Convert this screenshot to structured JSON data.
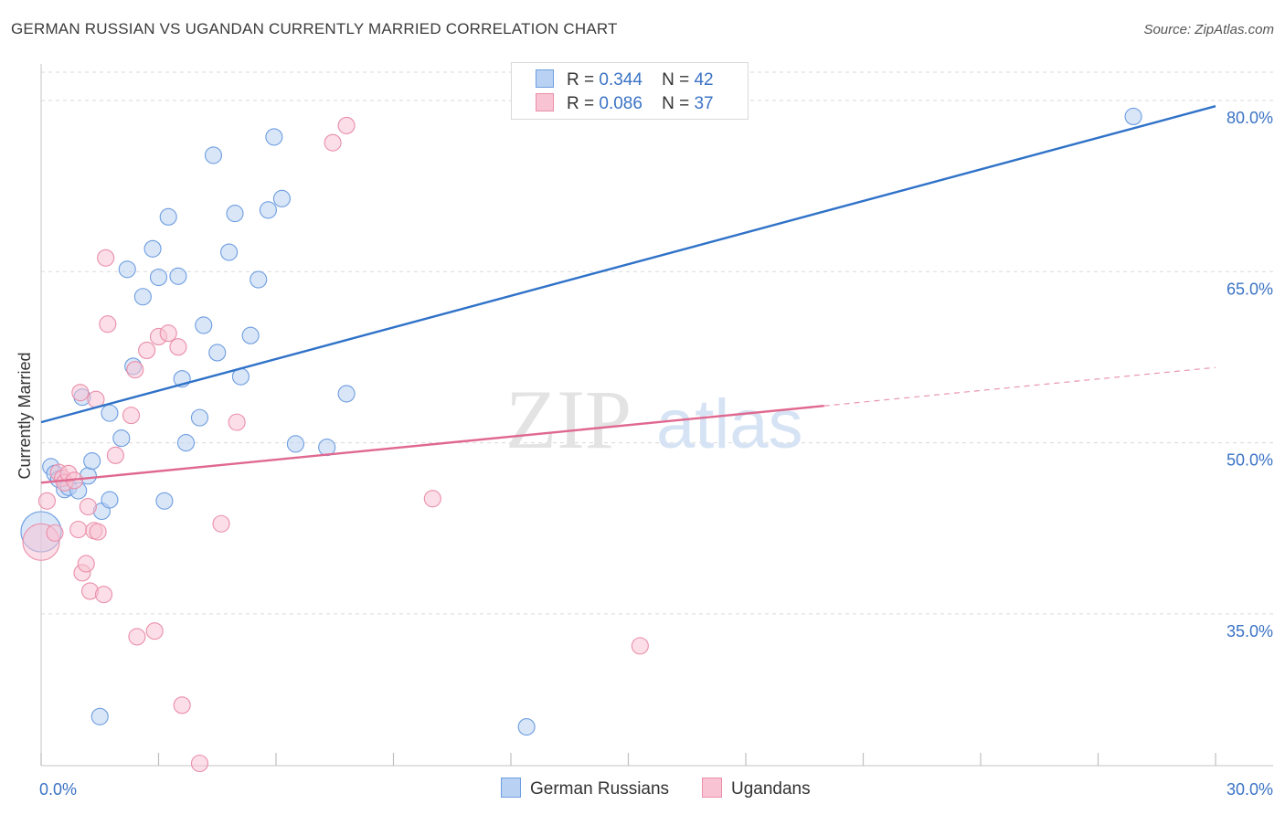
{
  "title": "GERMAN RUSSIAN VS UGANDAN CURRENTLY MARRIED CORRELATION CHART",
  "source": "Source: ZipAtlas.com",
  "watermark": {
    "zip": "ZIP",
    "atlas": "atlas"
  },
  "legend_top": [
    {
      "r_label": "R =",
      "r_value": "0.344",
      "n_label": "N =",
      "n_value": "42"
    },
    {
      "r_label": "R =",
      "r_value": "0.086",
      "n_label": "N =",
      "n_value": "37"
    }
  ],
  "legend_bottom": [
    "German Russians",
    "Ugandans"
  ],
  "colors": {
    "blue_fill": "#b9d1f2",
    "blue_stroke": "#6d9de0",
    "blue_line": "#2f72c8",
    "pink_fill": "#f8c3d3",
    "pink_stroke": "#ea8ea9",
    "pink_line": "#e0688f",
    "grid": "#dadada",
    "tick_label": "#3b73c5"
  },
  "chart_data": {
    "type": "scatter",
    "title": "GERMAN RUSSIAN VS UGANDAN CURRENTLY MARRIED CORRELATION CHART",
    "xlabel": "",
    "ylabel": "Currently Married",
    "xlim": [
      0,
      30
    ],
    "ylim": [
      21.7,
      83.2
    ],
    "x_tick_labels": [
      "0.0%",
      "30.0%"
    ],
    "y_ticks": [
      35,
      50,
      65,
      80
    ],
    "y_tick_labels": [
      "35.0%",
      "50.0%",
      "65.0%",
      "80.0%"
    ],
    "grid": true,
    "series": [
      {
        "name": "German Russians",
        "color": "blue",
        "r": 0.344,
        "n": 42,
        "trend": {
          "x": [
            0,
            30
          ],
          "y": [
            51.8,
            79.5
          ],
          "dashed_from": null
        },
        "points": [
          [
            0.0,
            42.2,
            22
          ],
          [
            0.25,
            47.9,
            9
          ],
          [
            0.35,
            47.3,
            9
          ],
          [
            0.45,
            46.8,
            9
          ],
          [
            0.6,
            45.9,
            9
          ],
          [
            0.7,
            46.1,
            9
          ],
          [
            0.95,
            45.8,
            9
          ],
          [
            1.2,
            47.1,
            9
          ],
          [
            1.3,
            48.4,
            9
          ],
          [
            1.55,
            44.0,
            9
          ],
          [
            1.05,
            54.0,
            9
          ],
          [
            1.75,
            45.0,
            9
          ],
          [
            1.75,
            52.6,
            9
          ],
          [
            2.05,
            50.4,
            9
          ],
          [
            1.5,
            26.0,
            9
          ],
          [
            2.2,
            65.2,
            9
          ],
          [
            2.35,
            56.7,
            9
          ],
          [
            2.6,
            62.8,
            9
          ],
          [
            2.85,
            67.0,
            9
          ],
          [
            3.0,
            64.5,
            9
          ],
          [
            3.15,
            44.9,
            9
          ],
          [
            3.25,
            69.8,
            9
          ],
          [
            3.5,
            64.6,
            9
          ],
          [
            3.6,
            55.6,
            9
          ],
          [
            3.7,
            50.0,
            9
          ],
          [
            4.05,
            52.2,
            9
          ],
          [
            4.15,
            60.3,
            9
          ],
          [
            4.4,
            75.2,
            9
          ],
          [
            4.5,
            57.9,
            9
          ],
          [
            4.8,
            66.7,
            9
          ],
          [
            4.95,
            70.1,
            9
          ],
          [
            5.1,
            55.8,
            9
          ],
          [
            5.35,
            59.4,
            9
          ],
          [
            5.55,
            64.3,
            9
          ],
          [
            5.8,
            70.4,
            9
          ],
          [
            5.95,
            76.8,
            9
          ],
          [
            6.15,
            71.4,
            9
          ],
          [
            6.5,
            49.9,
            9
          ],
          [
            7.3,
            49.6,
            9
          ],
          [
            7.8,
            54.3,
            9
          ],
          [
            12.4,
            25.1,
            9
          ],
          [
            27.9,
            78.6,
            9
          ]
        ]
      },
      {
        "name": "Ugandans",
        "color": "pink",
        "r": 0.086,
        "n": 37,
        "trend": {
          "x": [
            0,
            30
          ],
          "y": [
            46.5,
            56.6
          ],
          "dashed_from": 20.0
        },
        "points": [
          [
            0.0,
            41.3,
            20
          ],
          [
            0.15,
            44.9,
            9
          ],
          [
            0.35,
            42.1,
            9
          ],
          [
            0.45,
            47.4,
            9
          ],
          [
            0.55,
            46.9,
            9
          ],
          [
            0.6,
            46.5,
            9
          ],
          [
            0.7,
            47.3,
            9
          ],
          [
            0.85,
            46.7,
            9
          ],
          [
            0.95,
            42.4,
            9
          ],
          [
            1.0,
            54.4,
            9
          ],
          [
            1.05,
            38.6,
            9
          ],
          [
            1.15,
            39.4,
            9
          ],
          [
            1.2,
            44.4,
            9
          ],
          [
            1.25,
            37.0,
            9
          ],
          [
            1.35,
            42.3,
            9
          ],
          [
            1.4,
            53.8,
            9
          ],
          [
            1.45,
            42.2,
            9
          ],
          [
            1.6,
            36.7,
            9
          ],
          [
            1.65,
            66.2,
            9
          ],
          [
            1.7,
            60.4,
            9
          ],
          [
            1.9,
            48.9,
            9
          ],
          [
            2.3,
            52.4,
            9
          ],
          [
            2.4,
            56.4,
            9
          ],
          [
            2.45,
            33.0,
            9
          ],
          [
            2.7,
            58.1,
            9
          ],
          [
            2.9,
            33.5,
            9
          ],
          [
            3.0,
            59.3,
            9
          ],
          [
            3.25,
            59.6,
            9
          ],
          [
            3.5,
            58.4,
            9
          ],
          [
            3.6,
            27.0,
            9
          ],
          [
            4.05,
            21.9,
            9
          ],
          [
            4.6,
            42.9,
            9
          ],
          [
            5.0,
            51.8,
            9
          ],
          [
            7.45,
            76.3,
            9
          ],
          [
            7.8,
            77.8,
            9
          ],
          [
            10.0,
            45.1,
            9
          ],
          [
            15.3,
            32.2,
            9
          ]
        ]
      }
    ]
  }
}
